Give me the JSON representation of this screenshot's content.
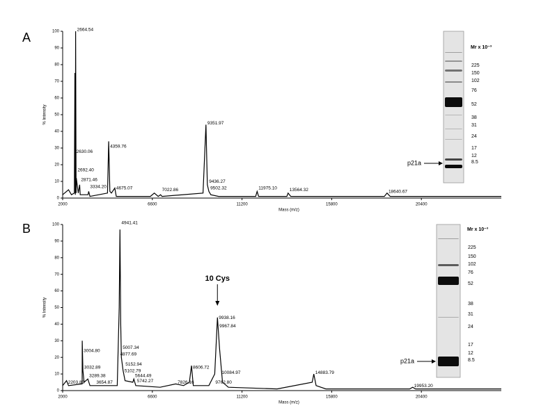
{
  "chart_data": [
    {
      "type": "line",
      "panel": "A",
      "x_label": "Mass (m/z)",
      "y_label": "% Intensity",
      "xlim": [
        2000,
        24500
      ],
      "xticks": [
        2000,
        6600,
        11200,
        15800,
        20400
      ],
      "ylim": [
        0,
        100
      ],
      "yticks": [
        0,
        10,
        20,
        30,
        40,
        50,
        60,
        70,
        80,
        90,
        100
      ],
      "series": [
        {
          "color": "#000000",
          "x": [
            2000,
            2300,
            2450,
            2600,
            2630,
            2650,
            2664,
            2690,
            2700,
            2800,
            2871,
            2900,
            3300,
            3334,
            3400,
            4300,
            4359,
            4420,
            4500,
            4675,
            4750,
            6500,
            6700,
            6900,
            7022,
            7100,
            9200,
            9351,
            9420,
            9500,
            9600,
            10000,
            11900,
            11975,
            12050,
            13500,
            13564,
            13700,
            18500,
            18640,
            18800,
            24500
          ],
          "values": [
            2,
            5,
            2,
            3,
            75,
            2,
            100,
            3,
            12,
            3,
            8,
            2,
            2,
            4,
            1,
            3,
            34,
            4,
            3,
            6,
            1,
            1,
            3,
            1,
            2,
            1,
            3,
            44,
            8,
            4,
            2,
            1,
            1,
            4,
            1,
            1,
            3,
            1,
            1,
            3,
            1,
            1
          ]
        }
      ],
      "annotations": [
        {
          "text": "2664.54",
          "x": 2664.54,
          "y": 100
        },
        {
          "text": "2630.06",
          "x": 2630.06,
          "y": 27
        },
        {
          "text": "2692.40",
          "x": 2692.4,
          "y": 16
        },
        {
          "text": "2871.46",
          "x": 2871.46,
          "y": 10
        },
        {
          "text": "3334.20",
          "x": 3334.2,
          "y": 6
        },
        {
          "text": "4359.76",
          "x": 4359.76,
          "y": 30
        },
        {
          "text": "4675.07",
          "x": 4675.07,
          "y": 5
        },
        {
          "text": "7022.86",
          "x": 7022.86,
          "y": 4
        },
        {
          "text": "9351.97",
          "x": 9351.97,
          "y": 44
        },
        {
          "text": "9436.27",
          "x": 9436.27,
          "y": 9
        },
        {
          "text": "9502.32",
          "x": 9502.32,
          "y": 5
        },
        {
          "text": "11975.10",
          "x": 11975.1,
          "y": 5
        },
        {
          "text": "13564.32",
          "x": 13564.32,
          "y": 4
        },
        {
          "text": "18640.67",
          "x": 18640.67,
          "y": 3
        }
      ],
      "gel": {
        "header": "Mr x 10⁻³",
        "markers": [
          "225",
          "150",
          "102",
          "76",
          "52",
          "38",
          "31",
          "24",
          "17",
          "12",
          "8.5"
        ],
        "band_label": "p21a"
      }
    },
    {
      "type": "line",
      "panel": "B",
      "x_label": "Mass (m/z)",
      "y_label": "% Intensity",
      "xlim": [
        2000,
        24500
      ],
      "xticks": [
        2000,
        6600,
        11200,
        15800,
        20400
      ],
      "ylim": [
        0,
        100
      ],
      "yticks": [
        0,
        10,
        20,
        30,
        40,
        50,
        60,
        70,
        80,
        90,
        100
      ],
      "series": [
        {
          "color": "#000000",
          "x": [
            2000,
            2200,
            2300,
            3000,
            3004,
            3040,
            3100,
            3290,
            3400,
            3650,
            4800,
            4900,
            4941,
            4980,
            5010,
            5100,
            5200,
            5600,
            5650,
            5750,
            7000,
            7800,
            8200,
            8500,
            8606,
            8700,
            9500,
            9800,
            9938,
            10050,
            10200,
            10500,
            13000,
            14800,
            14883,
            15000,
            15500,
            19800,
            19953,
            20100,
            24500
          ],
          "values": [
            3,
            6,
            3,
            4,
            30,
            12,
            5,
            7,
            3,
            3,
            3,
            50,
            97,
            40,
            20,
            12,
            6,
            5,
            7,
            3,
            2,
            4,
            3,
            5,
            15,
            3,
            3,
            10,
            44,
            25,
            5,
            2,
            1,
            5,
            10,
            3,
            1,
            1,
            2,
            1,
            1
          ]
        }
      ],
      "annotations": [
        {
          "text": "4941.41",
          "x": 4941.41,
          "y": 100
        },
        {
          "text": "9938.16",
          "x": 9938.16,
          "y": 43
        },
        {
          "text": "9967.84",
          "x": 9967.84,
          "y": 38
        },
        {
          "text": "3004.80",
          "x": 3004.8,
          "y": 23
        },
        {
          "text": "5007.34",
          "x": 5007.34,
          "y": 25
        },
        {
          "text": "4877.69",
          "x": 4877.69,
          "y": 21
        },
        {
          "text": "3032.89",
          "x": 3032.89,
          "y": 13
        },
        {
          "text": "5152.94",
          "x": 5152.94,
          "y": 15
        },
        {
          "text": "5102.79",
          "x": 5102.79,
          "y": 11
        },
        {
          "text": "8606.72",
          "x": 8606.72,
          "y": 13
        },
        {
          "text": "3289.38",
          "x": 3289.38,
          "y": 8
        },
        {
          "text": "5644.49",
          "x": 5644.49,
          "y": 8
        },
        {
          "text": "2203.83",
          "x": 2203.83,
          "y": 4
        },
        {
          "text": "5742.27",
          "x": 5742.27,
          "y": 5
        },
        {
          "text": "3654.87",
          "x": 3654.87,
          "y": 4
        },
        {
          "text": "7826.16",
          "x": 7826.16,
          "y": 4
        },
        {
          "text": "10084.97",
          "x": 10084.97,
          "y": 10
        },
        {
          "text": "9762.80",
          "x": 9762.8,
          "y": 4
        },
        {
          "text": "14883.79",
          "x": 14883.79,
          "y": 10
        },
        {
          "text": "19953.20",
          "x": 19953.2,
          "y": 2
        }
      ],
      "callout": {
        "text": "10 Cys",
        "x": 9938.16,
        "y": 64
      },
      "gel": {
        "header": "Mr x 10⁻³",
        "markers": [
          "225",
          "150",
          "102",
          "76",
          "52",
          "38",
          "31",
          "24",
          "17",
          "12",
          "8.5"
        ],
        "band_label": "p21a"
      }
    }
  ]
}
